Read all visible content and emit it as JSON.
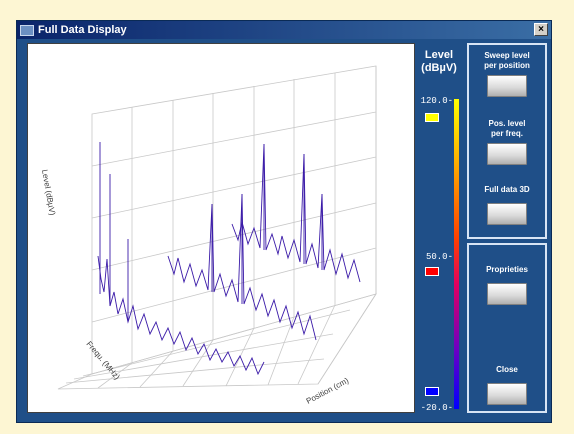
{
  "window": {
    "title": "Full Data Display",
    "close_glyph": "×"
  },
  "plot": {
    "axis_level": "Level (dBµV)",
    "axis_freq": "Frequ. (MHz)",
    "axis_position": "Position (cm)"
  },
  "scale": {
    "title_line1": "Level",
    "title_line2": "(dBµV)",
    "max_label": "120.0-",
    "mid_label": "50.0-",
    "min_label": "-20.0-",
    "swatch_max_color": "#ffff00",
    "swatch_mid_color": "#ff0000",
    "swatch_min_color": "#0000ff"
  },
  "buttons": {
    "sweep_level_line1": "Sweep level",
    "sweep_level_line2": "per position",
    "pos_level_line1": "Pos. level",
    "pos_level_line2": "per freq.",
    "full_3d": "Full data 3D",
    "properties": "Proprieties",
    "close": "Close"
  }
}
